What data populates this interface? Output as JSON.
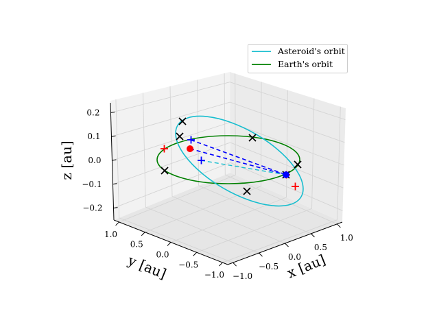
{
  "chart_data": {
    "type": "line",
    "projection": "3d",
    "title": "",
    "axes": {
      "x": {
        "label": "x [au]",
        "ticks": [
          -1.0,
          -0.5,
          0.0,
          0.5,
          1.0
        ],
        "tick_labels": [
          "−1.0",
          "−0.5",
          "0.0",
          "0.5",
          "1.0"
        ],
        "lim": [
          -1.1,
          1.1
        ]
      },
      "y": {
        "label": "y [au]",
        "ticks": [
          1.0,
          0.5,
          0.0,
          -0.5,
          -1.0
        ],
        "tick_labels": [
          "1.0",
          "0.5",
          "0.0",
          "−0.5",
          "−1.0"
        ],
        "lim": [
          -1.1,
          1.1
        ]
      },
      "z": {
        "label": "z [au]",
        "ticks": [
          0.2,
          0.1,
          0.0,
          -0.1,
          -0.2
        ],
        "tick_labels": [
          "0.2",
          "0.1",
          "0.0",
          "−0.1",
          "−0.2"
        ],
        "lim": [
          -0.25,
          0.25
        ]
      }
    },
    "grid": true,
    "legend_position": "top-right",
    "colors": {
      "asteroid": "#17becf",
      "earth": "#008000",
      "dashed_blue": "#0000ff",
      "marker_red": "#ff0000",
      "marker_black": "#000000",
      "pane": "#f2f2f2",
      "grid": "#d9d9d9"
    },
    "series": [
      {
        "name": "Asteroid's orbit",
        "color": "#17becf",
        "kind": "orbit"
      },
      {
        "name": "Earth's orbit",
        "color": "#008000",
        "kind": "orbit"
      }
    ],
    "markers": {
      "red_dots": 1,
      "blue_dots": 1,
      "red_plus": 3,
      "blue_plus": 2,
      "black_cross": 7
    }
  }
}
